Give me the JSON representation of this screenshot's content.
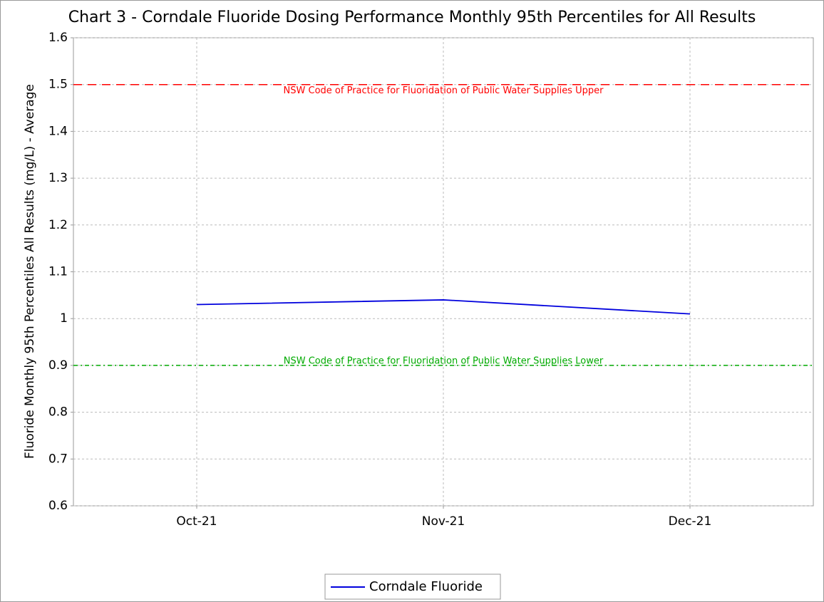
{
  "chart_data": {
    "type": "line",
    "title": "Chart 3 - Corndale Fluoride Dosing Performance Monthly 95th Percentiles for All Results",
    "y_label": "Fluoride Monthly 95th Percentiles All Results (mg/L) - Average",
    "categories": [
      "Oct-21",
      "Nov-21",
      "Dec-21"
    ],
    "series": [
      {
        "name": "Corndale Fluoride",
        "color": "#0000dd",
        "values": [
          1.03,
          1.04,
          1.01
        ]
      }
    ],
    "reference_lines": [
      {
        "label": "NSW Code of Practice for  Fluoridation of Public Water Supplies Upper",
        "value": 1.5,
        "color": "#ff0000",
        "dash": "12,8"
      },
      {
        "label": "NSW Code of Practice for  Fluoridation of Public Water Supplies Lower",
        "value": 0.9,
        "color": "#00aa00",
        "dash": "6,4,2,4"
      }
    ],
    "ylim": [
      0.6,
      1.6
    ],
    "yticks": [
      0.6,
      0.7,
      0.8,
      0.9,
      1,
      1.1,
      1.2,
      1.3,
      1.4,
      1.5,
      1.6
    ],
    "grid": true,
    "legend": "bottom"
  }
}
